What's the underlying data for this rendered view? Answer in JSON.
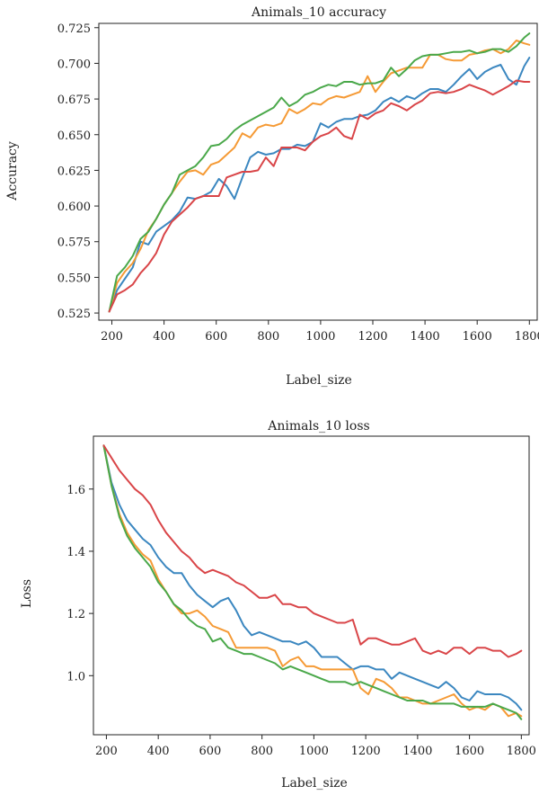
{
  "colors": {
    "blue": "#3b87c0",
    "orange": "#f59a35",
    "green": "#4aa84a",
    "red": "#d94548"
  },
  "chart_data": [
    {
      "type": "line",
      "title": "Animals_10 accuracy",
      "xlabel": "Label_size",
      "ylabel": "Accuracy",
      "xlim": [
        150,
        1830
      ],
      "ylim": [
        0.52,
        0.728
      ],
      "grid": false,
      "x_ticks": [
        200,
        400,
        600,
        800,
        1000,
        1200,
        1400,
        1600,
        1800
      ],
      "x_tick_labels": [
        "200",
        "400",
        "600",
        "800",
        "1000",
        "1200",
        "1400",
        "1600",
        "1800"
      ],
      "y_ticks": [
        0.525,
        0.55,
        0.575,
        0.6,
        0.625,
        0.65,
        0.675,
        0.7,
        0.725
      ],
      "y_tick_labels": [
        "0.525",
        "0.550",
        "0.575",
        "0.600",
        "0.625",
        "0.650",
        "0.675",
        "0.700",
        "0.725"
      ],
      "x": [
        190,
        220,
        250,
        280,
        310,
        340,
        370,
        400,
        430,
        460,
        490,
        520,
        550,
        580,
        610,
        640,
        670,
        700,
        730,
        760,
        790,
        820,
        850,
        880,
        910,
        940,
        970,
        1000,
        1030,
        1060,
        1090,
        1120,
        1150,
        1180,
        1210,
        1240,
        1270,
        1300,
        1330,
        1360,
        1390,
        1420,
        1450,
        1480,
        1510,
        1540,
        1570,
        1600,
        1630,
        1660,
        1690,
        1720,
        1750,
        1780,
        1800
      ],
      "series": [
        {
          "color": "blue",
          "values": [
            0.526,
            0.541,
            0.549,
            0.557,
            0.575,
            0.573,
            0.582,
            0.586,
            0.59,
            0.596,
            0.606,
            0.605,
            0.607,
            0.61,
            0.619,
            0.614,
            0.605,
            0.62,
            0.634,
            0.638,
            0.636,
            0.637,
            0.64,
            0.64,
            0.643,
            0.642,
            0.645,
            0.658,
            0.655,
            0.659,
            0.661,
            0.661,
            0.663,
            0.664,
            0.667,
            0.673,
            0.676,
            0.673,
            0.677,
            0.675,
            0.679,
            0.682,
            0.682,
            0.68,
            0.685,
            0.691,
            0.696,
            0.689,
            0.694,
            0.697,
            0.699,
            0.689,
            0.685,
            0.698,
            0.704
          ]
        },
        {
          "color": "orange",
          "values": [
            0.526,
            0.546,
            0.554,
            0.56,
            0.57,
            0.583,
            0.591,
            0.601,
            0.609,
            0.617,
            0.624,
            0.625,
            0.622,
            0.629,
            0.631,
            0.636,
            0.641,
            0.651,
            0.648,
            0.655,
            0.657,
            0.656,
            0.658,
            0.668,
            0.665,
            0.668,
            0.672,
            0.671,
            0.675,
            0.677,
            0.676,
            0.678,
            0.68,
            0.691,
            0.68,
            0.687,
            0.693,
            0.695,
            0.697,
            0.697,
            0.697,
            0.706,
            0.706,
            0.703,
            0.702,
            0.702,
            0.706,
            0.707,
            0.709,
            0.71,
            0.707,
            0.71,
            0.716,
            0.714,
            0.713
          ]
        },
        {
          "color": "green",
          "values": [
            0.526,
            0.551,
            0.557,
            0.565,
            0.577,
            0.582,
            0.591,
            0.601,
            0.609,
            0.622,
            0.625,
            0.628,
            0.634,
            0.642,
            0.643,
            0.647,
            0.653,
            0.657,
            0.66,
            0.663,
            0.666,
            0.669,
            0.676,
            0.67,
            0.673,
            0.678,
            0.68,
            0.683,
            0.685,
            0.684,
            0.687,
            0.687,
            0.685,
            0.686,
            0.686,
            0.688,
            0.697,
            0.691,
            0.696,
            0.702,
            0.705,
            0.706,
            0.706,
            0.707,
            0.708,
            0.708,
            0.709,
            0.707,
            0.708,
            0.71,
            0.71,
            0.708,
            0.712,
            0.718,
            0.721
          ]
        },
        {
          "color": "red",
          "values": [
            0.526,
            0.538,
            0.541,
            0.545,
            0.553,
            0.559,
            0.567,
            0.58,
            0.589,
            0.594,
            0.599,
            0.605,
            0.607,
            0.607,
            0.607,
            0.62,
            0.622,
            0.624,
            0.624,
            0.625,
            0.634,
            0.628,
            0.641,
            0.641,
            0.641,
            0.639,
            0.645,
            0.649,
            0.651,
            0.655,
            0.649,
            0.647,
            0.664,
            0.661,
            0.665,
            0.667,
            0.672,
            0.67,
            0.667,
            0.671,
            0.674,
            0.679,
            0.68,
            0.679,
            0.68,
            0.682,
            0.685,
            0.683,
            0.681,
            0.678,
            0.681,
            0.684,
            0.688,
            0.687,
            0.687
          ]
        }
      ]
    },
    {
      "type": "line",
      "title": "Animals_10 loss",
      "xlabel": "Label_size",
      "ylabel": "Loss",
      "xlim": [
        150,
        1830
      ],
      "ylim": [
        0.81,
        1.77
      ],
      "grid": false,
      "x_ticks": [
        200,
        400,
        600,
        800,
        1000,
        1200,
        1400,
        1600,
        1800
      ],
      "x_tick_labels": [
        "200",
        "400",
        "600",
        "800",
        "1000",
        "1200",
        "1400",
        "1600",
        "1800"
      ],
      "y_ticks": [
        1.0,
        1.2,
        1.4,
        1.6
      ],
      "y_tick_labels": [
        "1.0",
        "1.2",
        "1.4",
        "1.6"
      ],
      "x": [
        190,
        220,
        250,
        280,
        310,
        340,
        370,
        400,
        430,
        460,
        490,
        520,
        550,
        580,
        610,
        640,
        670,
        700,
        730,
        760,
        790,
        820,
        850,
        880,
        910,
        940,
        970,
        1000,
        1030,
        1060,
        1090,
        1120,
        1150,
        1180,
        1210,
        1240,
        1270,
        1300,
        1330,
        1360,
        1390,
        1420,
        1450,
        1480,
        1510,
        1540,
        1570,
        1600,
        1630,
        1660,
        1690,
        1720,
        1750,
        1780,
        1800
      ],
      "series": [
        {
          "color": "blue",
          "values": [
            1.74,
            1.62,
            1.55,
            1.5,
            1.47,
            1.44,
            1.42,
            1.38,
            1.35,
            1.33,
            1.33,
            1.29,
            1.26,
            1.24,
            1.22,
            1.24,
            1.25,
            1.21,
            1.16,
            1.13,
            1.14,
            1.13,
            1.12,
            1.11,
            1.11,
            1.1,
            1.11,
            1.09,
            1.06,
            1.06,
            1.06,
            1.04,
            1.02,
            1.03,
            1.03,
            1.02,
            1.02,
            0.99,
            1.01,
            1.0,
            0.99,
            0.98,
            0.97,
            0.96,
            0.98,
            0.96,
            0.93,
            0.92,
            0.95,
            0.94,
            0.94,
            0.94,
            0.93,
            0.91,
            0.89
          ]
        },
        {
          "color": "orange",
          "values": [
            1.74,
            1.61,
            1.52,
            1.46,
            1.42,
            1.39,
            1.37,
            1.31,
            1.27,
            1.23,
            1.2,
            1.2,
            1.21,
            1.19,
            1.16,
            1.15,
            1.14,
            1.09,
            1.09,
            1.09,
            1.09,
            1.09,
            1.08,
            1.03,
            1.05,
            1.06,
            1.03,
            1.03,
            1.02,
            1.02,
            1.02,
            1.02,
            1.02,
            0.96,
            0.94,
            0.99,
            0.98,
            0.96,
            0.93,
            0.93,
            0.92,
            0.91,
            0.91,
            0.92,
            0.93,
            0.94,
            0.91,
            0.89,
            0.9,
            0.89,
            0.91,
            0.9,
            0.87,
            0.88,
            0.87
          ]
        },
        {
          "color": "green",
          "values": [
            1.74,
            1.61,
            1.51,
            1.45,
            1.41,
            1.38,
            1.35,
            1.3,
            1.27,
            1.23,
            1.21,
            1.18,
            1.16,
            1.15,
            1.11,
            1.12,
            1.09,
            1.08,
            1.07,
            1.07,
            1.06,
            1.05,
            1.04,
            1.02,
            1.03,
            1.02,
            1.01,
            1.0,
            0.99,
            0.98,
            0.98,
            0.98,
            0.97,
            0.98,
            0.97,
            0.96,
            0.95,
            0.94,
            0.93,
            0.92,
            0.92,
            0.92,
            0.91,
            0.91,
            0.91,
            0.91,
            0.9,
            0.9,
            0.9,
            0.9,
            0.91,
            0.9,
            0.89,
            0.88,
            0.86
          ]
        },
        {
          "color": "red",
          "values": [
            1.74,
            1.7,
            1.66,
            1.63,
            1.6,
            1.58,
            1.55,
            1.5,
            1.46,
            1.43,
            1.4,
            1.38,
            1.35,
            1.33,
            1.34,
            1.33,
            1.32,
            1.3,
            1.29,
            1.27,
            1.25,
            1.25,
            1.26,
            1.23,
            1.23,
            1.22,
            1.22,
            1.2,
            1.19,
            1.18,
            1.17,
            1.17,
            1.18,
            1.1,
            1.12,
            1.12,
            1.11,
            1.1,
            1.1,
            1.11,
            1.12,
            1.08,
            1.07,
            1.08,
            1.07,
            1.09,
            1.09,
            1.07,
            1.09,
            1.09,
            1.08,
            1.08,
            1.06,
            1.07,
            1.08
          ]
        }
      ]
    }
  ]
}
